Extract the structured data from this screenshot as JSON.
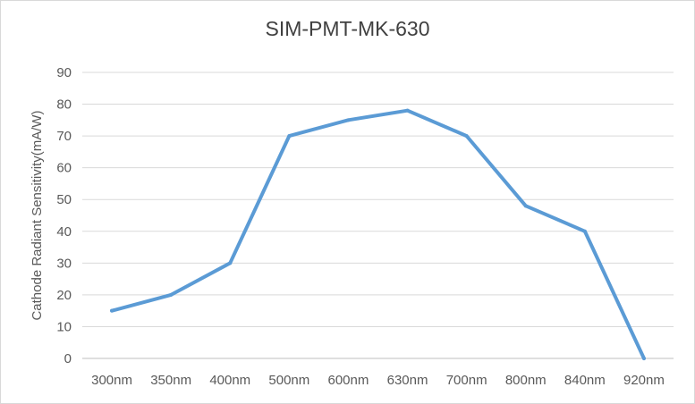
{
  "chart_data": {
    "type": "line",
    "title": "SIM-PMT-MK-630",
    "xlabel": "",
    "ylabel": "Cathode Radiant Sensitivity(mA/W)",
    "categories": [
      "300nm",
      "350nm",
      "400nm",
      "500nm",
      "600nm",
      "630nm",
      "700nm",
      "800nm",
      "840nm",
      "920nm"
    ],
    "series": [
      {
        "values": [
          15,
          20,
          30,
          70,
          75,
          78,
          70,
          48,
          40,
          0
        ],
        "color": "#5b9bd5"
      }
    ],
    "ylim": [
      0,
      90
    ],
    "yticks": [
      0,
      10,
      20,
      30,
      40,
      50,
      60,
      70,
      80,
      90
    ],
    "grid": true,
    "legend": "none"
  }
}
